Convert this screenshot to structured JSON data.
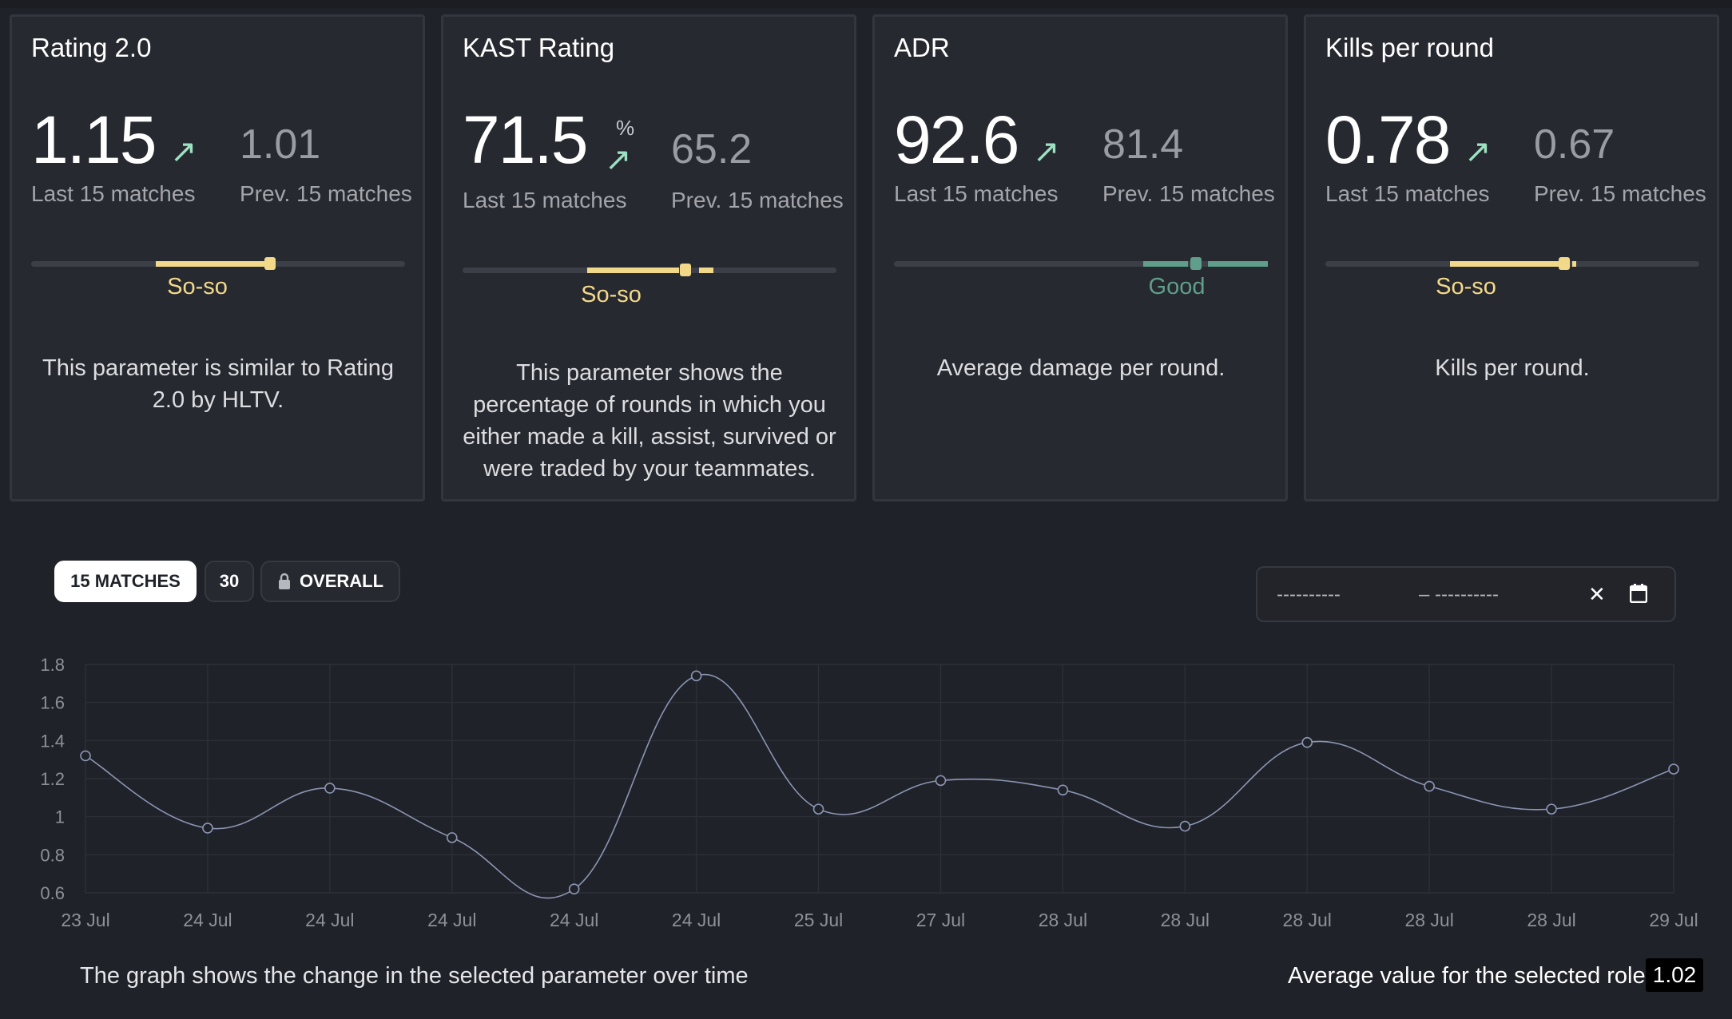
{
  "cards": [
    {
      "title": "Rating 2.0",
      "value": "1.15",
      "trend_icon": "arrow-up-right-icon",
      "value_caption": "Last 15 matches",
      "prev_value": "1.01",
      "prev_caption": "Prev. 15 matches",
      "verdict": "So-so",
      "verdict_color": "#f2d98a",
      "level": 0.64,
      "description": "This parameter is similar to Rating 2.0 by HLTV."
    },
    {
      "title": "KAST Rating",
      "value": "71.5",
      "unit": "%",
      "trend_icon": "arrow-up-right-icon",
      "value_caption": "Last 15 matches",
      "prev_value": "65.2",
      "prev_caption": "Prev. 15 matches",
      "verdict": "So-so",
      "verdict_color": "#f2d98a",
      "level": 0.6,
      "description": "This parameter shows the percentage of rounds in which you either made a kill, assist, survived or were traded by your teammates."
    },
    {
      "title": "ADR",
      "value": "92.6",
      "trend_icon": "arrow-up-right-icon",
      "value_caption": "Last 15 matches",
      "prev_value": "81.4",
      "prev_caption": "Prev. 15 matches",
      "verdict": "Good",
      "verdict_color": "#5f9e8a",
      "level": 0.81,
      "description": "Average damage per round."
    },
    {
      "title": "Kills per round",
      "value": "0.78",
      "trend_icon": "arrow-up-right-icon",
      "value_caption": "Last 15 matches",
      "prev_value": "0.67",
      "prev_caption": "Prev. 15 matches",
      "verdict": "So-so",
      "verdict_color": "#f2d98a",
      "level": 0.63,
      "description": "Kills per round."
    }
  ],
  "range_tabs": {
    "active": "15 MATCHES",
    "second": "30",
    "third": "OVERALL",
    "third_icon": "lock-icon"
  },
  "date_filter": {
    "from_placeholder": "----------",
    "to_placeholder": "– ----------",
    "clear_icon": "close-icon",
    "calendar_icon": "calendar-icon"
  },
  "chart_data": {
    "type": "line",
    "categories": [
      "23 Jul",
      "24 Jul",
      "24 Jul",
      "24 Jul",
      "24 Jul",
      "24 Jul",
      "25 Jul",
      "27 Jul",
      "28 Jul",
      "28 Jul",
      "28 Jul",
      "28 Jul",
      "28 Jul",
      "29 Jul"
    ],
    "series": [
      {
        "values": [
          1.32,
          0.94,
          1.15,
          0.89,
          0.62,
          1.74,
          1.04,
          1.19,
          1.14,
          0.95,
          1.39,
          1.16,
          1.04,
          1.25
        ]
      }
    ],
    "yticks": [
      "1.8",
      "1.6",
      "1.4",
      "1.2",
      "1",
      "0.8",
      "0.6"
    ],
    "ylim": [
      0.6,
      1.8
    ],
    "grid": true,
    "line_color": "#8b95b3"
  },
  "footer": {
    "caption": "The graph shows the change in the selected parameter over time",
    "avg_label": "Average value for the selected role",
    "avg_value": "1.02"
  }
}
